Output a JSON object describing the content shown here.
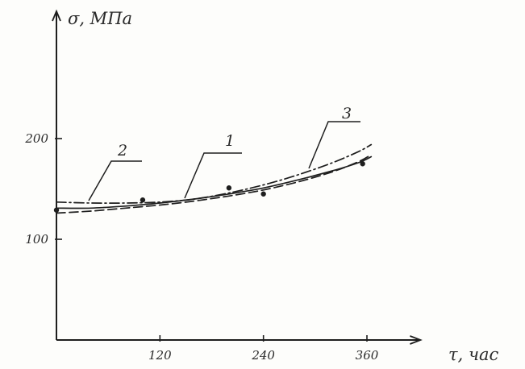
{
  "chart_data": {
    "type": "line",
    "title": "",
    "ylabel": "σ, МПа",
    "xlabel": "τ, час",
    "xlim": [
      0,
      380
    ],
    "ylim": [
      0,
      310
    ],
    "x_ticks": [
      120,
      240,
      360
    ],
    "y_ticks": [
      100,
      200
    ],
    "grid": false,
    "series": [
      {
        "name": "1",
        "style": "solid",
        "x": [
          0,
          40,
          80,
          120,
          160,
          200,
          240,
          280,
          320,
          350,
          365
        ],
        "y": [
          131,
          131,
          133,
          136,
          140,
          145,
          151,
          159,
          168,
          176,
          182
        ]
      },
      {
        "name": "2",
        "style": "dashed",
        "x": [
          0,
          40,
          80,
          120,
          160,
          200,
          240,
          280,
          320,
          350,
          365
        ],
        "y": [
          126,
          128,
          131,
          134,
          138,
          143,
          149,
          157,
          167,
          177,
          184
        ]
      },
      {
        "name": "3",
        "style": "dashdot",
        "x": [
          0,
          40,
          80,
          120,
          160,
          200,
          240,
          280,
          320,
          350,
          365
        ],
        "y": [
          137,
          136,
          136,
          137,
          140,
          146,
          154,
          164,
          176,
          187,
          194
        ]
      }
    ],
    "points": {
      "x": [
        0,
        100,
        200,
        240,
        355
      ],
      "y": [
        129,
        139,
        151,
        145,
        175
      ]
    },
    "colors": {
      "line": "#1e1e1e",
      "background": "#fdfdfb"
    }
  }
}
